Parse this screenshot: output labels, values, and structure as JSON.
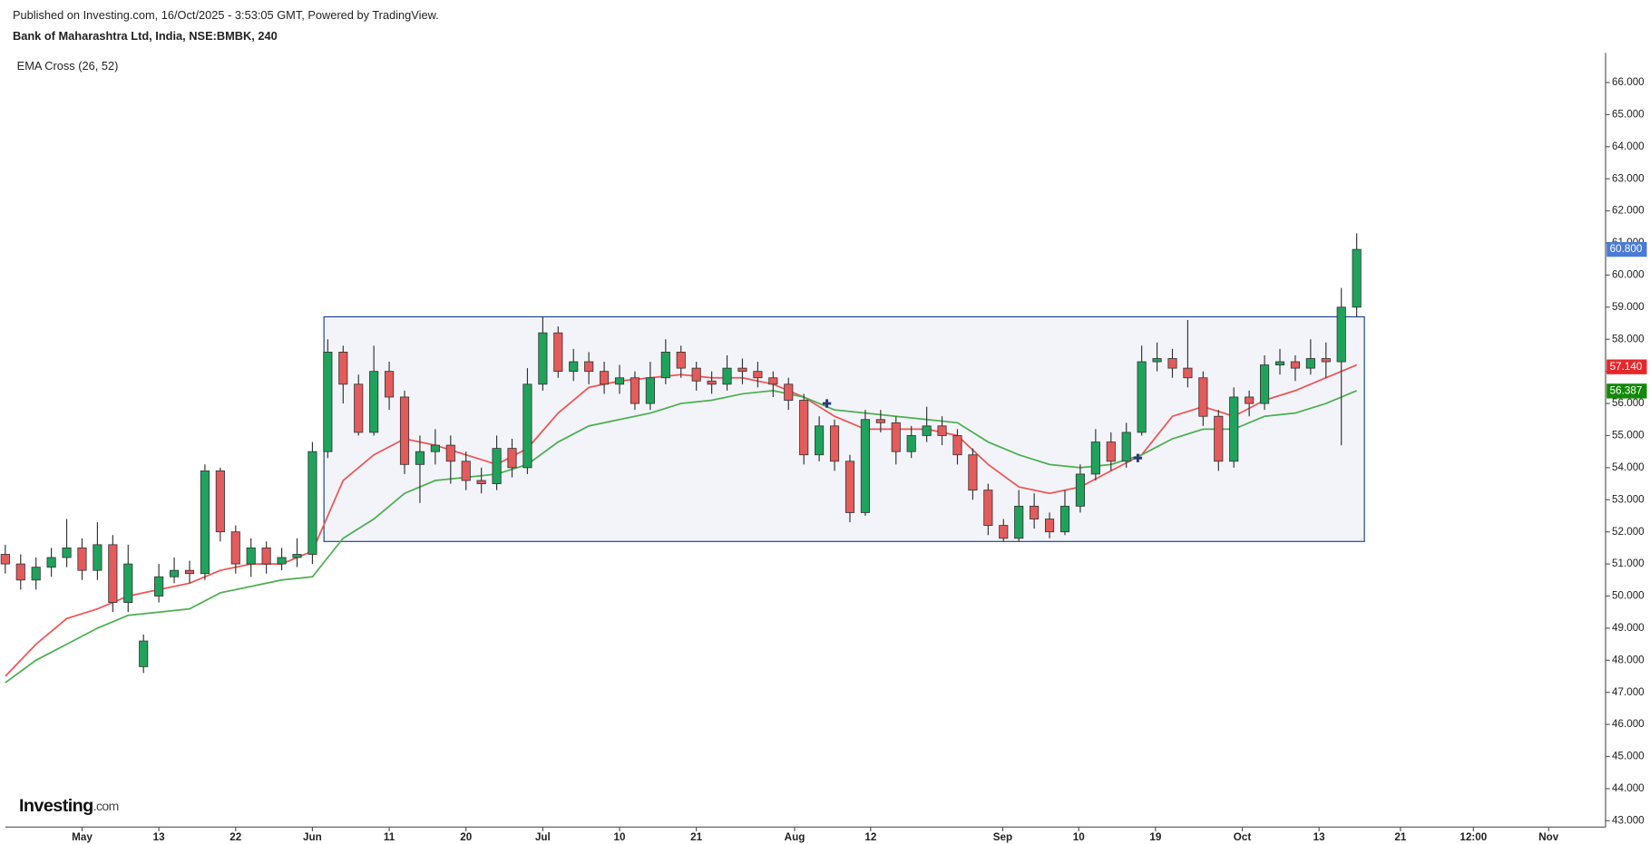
{
  "header": {
    "published": "Published on Investing.com, 16/Oct/2025 - 3:53:05 GMT, Powered by TradingView.",
    "symbol": "Bank of Maharashtra Ltd, India, NSE:BMBK, 240",
    "indicator": "EMA Cross (26, 52)"
  },
  "logo": {
    "brand": "Investing",
    "suffix": ".com"
  },
  "chart_data": {
    "type": "candlestick",
    "up_color": "#1fa35c",
    "down_color": "#e45b5b",
    "x": [
      0,
      2,
      4,
      6,
      8,
      10,
      12,
      14,
      16,
      18,
      20,
      22,
      24,
      26,
      28,
      30,
      32,
      34,
      36,
      38,
      40,
      42,
      44,
      46,
      48,
      50,
      52,
      54,
      56,
      58,
      60,
      62,
      64,
      66,
      68,
      70,
      72,
      74,
      76,
      78,
      80,
      82,
      84,
      86,
      88,
      90,
      92,
      94,
      96,
      98,
      100,
      102,
      104,
      106,
      108,
      110,
      112,
      114,
      116,
      118,
      120,
      122,
      124,
      126,
      128,
      130,
      132,
      134,
      136,
      138,
      140,
      142,
      144,
      146,
      148,
      150,
      152,
      154,
      156,
      158,
      160,
      162,
      164,
      166,
      168,
      170,
      172,
      174,
      176
    ],
    "open": [
      51.3,
      51.0,
      50.5,
      50.9,
      51.2,
      51.5,
      50.8,
      51.6,
      49.8,
      47.8,
      50.0,
      50.6,
      50.8,
      50.7,
      53.9,
      52.0,
      51.0,
      51.5,
      51.0,
      51.2,
      51.3,
      54.5,
      57.6,
      56.6,
      55.1,
      57.0,
      56.2,
      54.1,
      54.5,
      54.7,
      54.2,
      53.6,
      53.5,
      54.6,
      54.0,
      56.6,
      58.2,
      57.0,
      57.3,
      57.0,
      56.6,
      56.8,
      56.0,
      56.8,
      57.6,
      57.1,
      56.7,
      56.6,
      57.1,
      57.0,
      56.8,
      56.6,
      56.1,
      54.4,
      55.3,
      54.2,
      52.6,
      55.5,
      55.4,
      54.5,
      55.0,
      55.3,
      55.0,
      54.4,
      53.3,
      52.2,
      51.8,
      52.8,
      52.4,
      52.0,
      52.8,
      53.8,
      54.8,
      54.2,
      55.1,
      57.3,
      57.4,
      57.1,
      56.8,
      55.6,
      54.2,
      56.2,
      56.0,
      57.2,
      57.3,
      57.1,
      57.4,
      57.3,
      59.0
    ],
    "high": [
      51.6,
      51.3,
      51.2,
      51.5,
      52.4,
      51.8,
      52.3,
      51.9,
      51.6,
      48.8,
      51.0,
      51.2,
      51.1,
      54.1,
      54.0,
      52.2,
      51.8,
      51.7,
      51.5,
      51.8,
      54.8,
      58.0,
      57.8,
      56.9,
      57.8,
      57.3,
      56.4,
      55.0,
      55.2,
      55.0,
      54.5,
      54.0,
      55.0,
      54.9,
      57.1,
      58.7,
      58.4,
      57.7,
      57.6,
      57.3,
      57.2,
      57.0,
      57.3,
      58.0,
      57.8,
      57.3,
      57.0,
      57.5,
      57.4,
      57.3,
      57.0,
      56.8,
      56.3,
      55.6,
      55.5,
      54.4,
      55.8,
      55.8,
      55.6,
      55.3,
      55.9,
      55.6,
      55.2,
      54.6,
      53.5,
      52.4,
      53.3,
      53.2,
      52.6,
      53.3,
      54.1,
      55.2,
      55.1,
      55.4,
      57.8,
      57.9,
      57.7,
      58.6,
      57.0,
      55.8,
      56.5,
      56.4,
      57.5,
      57.7,
      57.5,
      58.0,
      57.9,
      59.6,
      61.3
    ],
    "low": [
      50.7,
      50.2,
      50.2,
      50.6,
      50.9,
      50.5,
      50.5,
      49.5,
      49.5,
      47.6,
      49.8,
      50.4,
      50.4,
      50.5,
      51.7,
      50.7,
      50.6,
      50.7,
      50.8,
      50.9,
      51.0,
      54.3,
      56.0,
      55.0,
      55.0,
      55.8,
      53.8,
      52.9,
      54.1,
      53.5,
      53.3,
      53.2,
      53.3,
      53.7,
      53.8,
      56.4,
      56.8,
      56.7,
      56.6,
      56.3,
      56.3,
      55.8,
      55.8,
      56.6,
      56.8,
      56.4,
      56.3,
      56.4,
      56.6,
      56.5,
      56.2,
      55.8,
      54.1,
      54.2,
      53.9,
      52.3,
      52.5,
      55.1,
      54.1,
      54.3,
      54.8,
      54.7,
      54.1,
      53.0,
      51.9,
      51.7,
      51.7,
      52.1,
      51.8,
      51.9,
      52.6,
      53.6,
      53.9,
      54.0,
      55.0,
      57.0,
      56.8,
      56.5,
      55.3,
      53.9,
      54.0,
      55.6,
      55.8,
      56.9,
      56.7,
      56.9,
      56.8,
      54.7,
      58.7
    ],
    "close": [
      51.0,
      50.5,
      50.9,
      51.2,
      51.5,
      50.8,
      51.6,
      49.8,
      51.0,
      48.6,
      50.6,
      50.8,
      50.7,
      53.9,
      52.0,
      51.0,
      51.5,
      51.0,
      51.2,
      51.3,
      54.5,
      57.6,
      56.6,
      55.1,
      57.0,
      56.2,
      54.1,
      54.5,
      54.7,
      54.2,
      53.6,
      53.5,
      54.6,
      54.0,
      56.6,
      58.2,
      57.0,
      57.3,
      57.0,
      56.6,
      56.8,
      56.0,
      56.8,
      57.6,
      57.1,
      56.7,
      56.6,
      57.1,
      57.0,
      56.8,
      56.6,
      56.1,
      54.4,
      55.3,
      54.2,
      52.6,
      55.5,
      55.4,
      54.5,
      55.0,
      55.3,
      55.0,
      54.4,
      53.3,
      52.2,
      51.8,
      52.8,
      52.4,
      52.0,
      52.8,
      53.8,
      54.8,
      54.2,
      55.1,
      57.3,
      57.4,
      57.1,
      56.8,
      55.6,
      54.2,
      56.2,
      56.0,
      57.2,
      57.3,
      57.1,
      57.4,
      57.3,
      59.0,
      60.8
    ],
    "series": [
      {
        "name": "EMA 26",
        "color": "#f05454",
        "x": [
          0,
          4,
          8,
          12,
          16,
          20,
          24,
          28,
          32,
          36,
          40,
          44,
          48,
          52,
          56,
          60,
          64,
          68,
          72,
          76,
          80,
          84,
          88,
          92,
          96,
          100,
          104,
          108,
          112,
          116,
          120,
          124,
          128,
          132,
          136,
          140,
          144,
          148,
          152,
          156,
          160,
          164,
          168,
          172,
          176
        ],
        "values": [
          47.5,
          48.5,
          49.3,
          49.6,
          50.0,
          50.2,
          50.4,
          50.8,
          51.0,
          51.0,
          51.4,
          53.6,
          54.4,
          54.9,
          54.7,
          54.4,
          54.1,
          54.6,
          55.7,
          56.5,
          56.7,
          56.8,
          56.9,
          56.8,
          56.8,
          56.6,
          56.2,
          55.6,
          55.2,
          55.2,
          55.2,
          55.0,
          54.1,
          53.4,
          53.2,
          53.4,
          53.9,
          54.4,
          55.6,
          55.9,
          55.6,
          56.1,
          56.4,
          56.8,
          57.2
        ]
      },
      {
        "name": "EMA 52",
        "color": "#4caf50",
        "x": [
          0,
          4,
          8,
          12,
          16,
          20,
          24,
          28,
          32,
          36,
          40,
          44,
          48,
          52,
          56,
          60,
          64,
          68,
          72,
          76,
          80,
          84,
          88,
          92,
          96,
          100,
          104,
          108,
          112,
          116,
          120,
          124,
          128,
          132,
          136,
          140,
          144,
          148,
          152,
          156,
          160,
          164,
          168,
          172,
          176
        ],
        "values": [
          47.3,
          48.0,
          48.5,
          49.0,
          49.4,
          49.5,
          49.6,
          50.1,
          50.3,
          50.5,
          50.6,
          51.8,
          52.4,
          53.2,
          53.6,
          53.7,
          53.8,
          54.1,
          54.8,
          55.3,
          55.5,
          55.7,
          56.0,
          56.1,
          56.3,
          56.4,
          56.2,
          55.8,
          55.7,
          55.6,
          55.5,
          55.4,
          54.8,
          54.4,
          54.1,
          54.0,
          54.1,
          54.4,
          54.9,
          55.2,
          55.2,
          55.6,
          55.7,
          56.0,
          56.4
        ]
      }
    ],
    "crosses": {
      "color": "#2a3a7a",
      "x": [
        107,
        147.5
      ],
      "values": [
        56.0,
        54.3
      ]
    },
    "range_box": {
      "color": "#1c3f94",
      "x": [
        41.5,
        177
      ],
      "y": [
        51.7,
        58.7
      ]
    },
    "price_labels": [
      {
        "value": 60.8,
        "label": "60.800",
        "color": "#4a7bd6"
      },
      {
        "value": 57.14,
        "label": "57.140",
        "color": "#e8262a"
      },
      {
        "value": 56.387,
        "label": "56.387",
        "color": "#138a07"
      }
    ],
    "xlim": [
      0,
      208
    ],
    "xticks": [
      {
        "value": 10,
        "label": "May"
      },
      {
        "value": 20,
        "label": "13"
      },
      {
        "value": 30,
        "label": "22"
      },
      {
        "value": 40,
        "label": "Jun"
      },
      {
        "value": 50,
        "label": "11"
      },
      {
        "value": 60,
        "label": "20"
      },
      {
        "value": 70,
        "label": "Jul"
      },
      {
        "value": 80,
        "label": "10"
      },
      {
        "value": 90,
        "label": "21"
      },
      {
        "value": 102.8,
        "label": "Aug"
      },
      {
        "value": 112.7,
        "label": "12"
      },
      {
        "value": 129.9,
        "label": "Sep"
      },
      {
        "value": 139.8,
        "label": "10"
      },
      {
        "value": 149.8,
        "label": "19"
      },
      {
        "value": 161.1,
        "label": "Oct"
      },
      {
        "value": 171.1,
        "label": "13"
      },
      {
        "value": 181.7,
        "label": "21"
      },
      {
        "value": 191.2,
        "label": "12:00"
      },
      {
        "value": 201,
        "label": "Nov"
      }
    ],
    "ylim": [
      43,
      66
    ],
    "yticks": [
      {
        "value": 43,
        "label": "43.000"
      },
      {
        "value": 44,
        "label": "44.000"
      },
      {
        "value": 45,
        "label": "45.000"
      },
      {
        "value": 46,
        "label": "46.000"
      },
      {
        "value": 47,
        "label": "47.000"
      },
      {
        "value": 48,
        "label": "48.000"
      },
      {
        "value": 49,
        "label": "49.000"
      },
      {
        "value": 50,
        "label": "50.000"
      },
      {
        "value": 51,
        "label": "51.000"
      },
      {
        "value": 52,
        "label": "52.000"
      },
      {
        "value": 53,
        "label": "53.000"
      },
      {
        "value": 54,
        "label": "54.000"
      },
      {
        "value": 55,
        "label": "55.000"
      },
      {
        "value": 56,
        "label": "56.000"
      },
      {
        "value": 57,
        "label": "57.000"
      },
      {
        "value": 58,
        "label": "58.000"
      },
      {
        "value": 59,
        "label": "59.000"
      },
      {
        "value": 60,
        "label": "60.000"
      },
      {
        "value": 61,
        "label": "61.000"
      },
      {
        "value": 62,
        "label": "62.000"
      },
      {
        "value": 63,
        "label": "63.000"
      },
      {
        "value": 64,
        "label": "64.000"
      },
      {
        "value": 65,
        "label": "65.000"
      },
      {
        "value": 66,
        "label": "66.000"
      }
    ]
  }
}
